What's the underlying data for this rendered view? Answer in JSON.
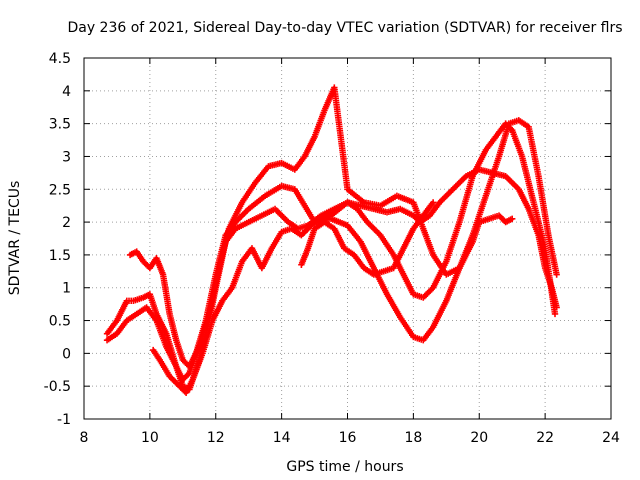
{
  "chart_data": {
    "type": "scatter",
    "title": "Day 236 of 2021, Sidereal Day-to-day VTEC variation (SDTVAR) for receiver flrs",
    "xlabel": "GPS time / hours",
    "ylabel": "SDTVAR / TECUs",
    "xlim": [
      8,
      24
    ],
    "ylim": [
      -1,
      4.5
    ],
    "xticks": [
      8,
      10,
      12,
      14,
      16,
      18,
      20,
      22,
      24
    ],
    "xtick_labels": [
      "8",
      "10",
      "12",
      "14",
      "16",
      "18",
      "20",
      "22",
      "24"
    ],
    "yticks": [
      -1,
      -0.5,
      0,
      0.5,
      1,
      1.5,
      2,
      2.5,
      3,
      3.5,
      4,
      4.5
    ],
    "ytick_labels": [
      "-1",
      "-0.5",
      "0",
      "0.5",
      "1",
      "1.5",
      "2",
      "2.5",
      "3",
      "3.5",
      "4",
      "4.5"
    ],
    "grid": true,
    "marker": "+",
    "color": "#ff0000",
    "series": [
      {
        "x": [
          8.7,
          9.0,
          9.3,
          9.5,
          9.8,
          10.0,
          10.2,
          10.5,
          10.8,
          11.0,
          11.2,
          11.5,
          11.8,
          12.0,
          12.3,
          12.6,
          13.0,
          13.4,
          13.8,
          14.2,
          14.5,
          14.8,
          15.2,
          15.6,
          16.0,
          16.4,
          16.8,
          17.2,
          17.6,
          18.0,
          18.2,
          18.5,
          18.8,
          19.2,
          19.6,
          20.0,
          20.4,
          20.8,
          21.2,
          21.5,
          21.8,
          22.0,
          22.2,
          22.35
        ],
        "y": [
          0.3,
          0.5,
          0.8,
          0.8,
          0.85,
          0.9,
          0.6,
          0.3,
          -0.2,
          -0.5,
          -0.55,
          -0.1,
          0.5,
          1.0,
          1.7,
          1.9,
          2.0,
          2.1,
          2.2,
          2.0,
          1.9,
          1.95,
          2.1,
          2.2,
          2.3,
          2.25,
          2.2,
          2.15,
          2.2,
          2.1,
          2.0,
          2.1,
          2.3,
          2.5,
          2.7,
          2.8,
          2.75,
          2.7,
          2.5,
          2.2,
          1.8,
          1.3,
          1.0,
          0.7
        ]
      },
      {
        "x": [
          8.7,
          9.0,
          9.3,
          9.6,
          9.9,
          10.2,
          10.5,
          10.8,
          11.0,
          11.2,
          11.4,
          11.7,
          12.0,
          12.3,
          12.6,
          13.0,
          13.5,
          14.0,
          14.4,
          15.0,
          15.5,
          16.0,
          16.3,
          16.6,
          17.0,
          17.4,
          17.8,
          18.0,
          18.3,
          18.6,
          19.0,
          19.4,
          19.8,
          20.2,
          20.5,
          20.8,
          21.0,
          21.3,
          21.6,
          22.0,
          22.3
        ],
        "y": [
          0.2,
          0.3,
          0.5,
          0.6,
          0.7,
          0.5,
          0.1,
          -0.2,
          -0.4,
          -0.3,
          0.0,
          0.5,
          1.2,
          1.8,
          2.0,
          2.2,
          2.4,
          2.55,
          2.5,
          2.0,
          2.1,
          2.3,
          2.2,
          2.0,
          1.8,
          1.5,
          1.1,
          0.9,
          0.85,
          1.0,
          1.4,
          2.0,
          2.7,
          3.1,
          3.3,
          3.5,
          3.4,
          3.0,
          2.4,
          1.6,
          0.6
        ]
      },
      {
        "x": [
          9.4,
          9.6,
          9.8,
          10.0,
          10.2,
          10.4,
          10.6,
          10.8,
          11.0,
          11.2,
          11.5,
          11.8,
          12.1,
          12.4,
          12.8,
          13.2,
          13.6,
          14.0,
          14.4,
          14.7,
          15.0,
          15.3,
          15.6,
          16.0,
          16.5,
          17.0,
          17.5,
          18.0,
          18.3,
          18.6,
          19.0,
          19.4,
          19.8,
          20.2,
          20.6,
          20.9,
          21.2,
          21.5,
          21.8,
          22.1,
          22.35
        ],
        "y": [
          1.5,
          1.55,
          1.4,
          1.3,
          1.45,
          1.2,
          0.6,
          0.2,
          -0.1,
          -0.2,
          0.1,
          0.6,
          1.3,
          1.9,
          2.3,
          2.6,
          2.85,
          2.9,
          2.8,
          3.0,
          3.3,
          3.7,
          4.05,
          2.5,
          2.3,
          2.25,
          2.4,
          2.3,
          1.9,
          1.5,
          1.2,
          1.3,
          1.8,
          2.4,
          3.0,
          3.5,
          3.55,
          3.45,
          2.7,
          1.8,
          1.2
        ]
      },
      {
        "x": [
          10.1,
          10.3,
          10.6,
          10.9,
          11.1,
          11.3,
          11.6,
          11.9,
          12.2,
          12.5,
          12.8,
          13.1,
          13.4,
          13.7,
          14.0,
          14.3,
          14.6,
          15.0,
          15.5,
          16.0,
          16.4,
          16.8,
          17.2,
          17.6,
          18.0,
          18.3,
          18.6,
          19.0,
          19.4,
          19.8,
          20.0,
          20.3,
          20.6,
          20.8,
          21.0
        ],
        "y": [
          0.05,
          -0.1,
          -0.35,
          -0.5,
          -0.6,
          -0.4,
          0.0,
          0.5,
          0.8,
          1.0,
          1.4,
          1.6,
          1.3,
          1.6,
          1.85,
          1.9,
          1.8,
          2.0,
          2.05,
          1.95,
          1.7,
          1.3,
          0.9,
          0.55,
          0.25,
          0.2,
          0.4,
          0.8,
          1.3,
          1.7,
          2.0,
          2.05,
          2.1,
          2.0,
          2.05
        ]
      },
      {
        "x": [
          14.6,
          14.8,
          15.0,
          15.3,
          15.6,
          15.9,
          16.2,
          16.5,
          16.8,
          17.1,
          17.4,
          17.7,
          18.0,
          18.3,
          18.6
        ],
        "y": [
          1.35,
          1.6,
          1.9,
          2.0,
          1.9,
          1.6,
          1.5,
          1.3,
          1.2,
          1.25,
          1.3,
          1.6,
          1.9,
          2.1,
          2.3
        ]
      }
    ]
  }
}
